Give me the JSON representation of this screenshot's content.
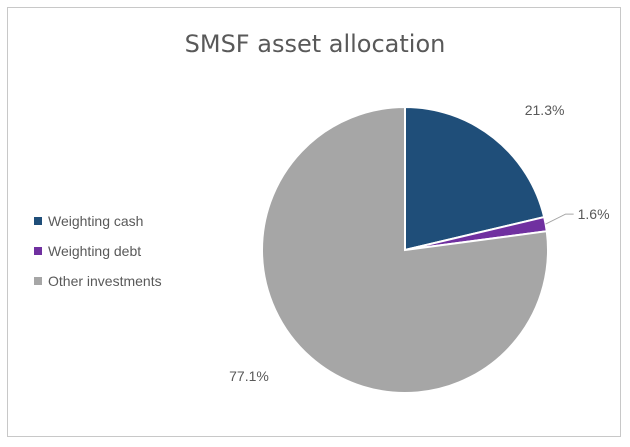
{
  "chart_data": {
    "type": "pie",
    "title": "SMSF asset allocation",
    "categories": [
      "Weighting cash",
      "Weighting debt",
      "Other investments"
    ],
    "values": [
      21.3,
      1.6,
      77.1
    ],
    "labels": [
      "21.3%",
      "1.6%",
      "77.1%"
    ],
    "colors": [
      "#1f4e79",
      "#7030a0",
      "#a6a6a6"
    ],
    "legend_position": "left"
  }
}
